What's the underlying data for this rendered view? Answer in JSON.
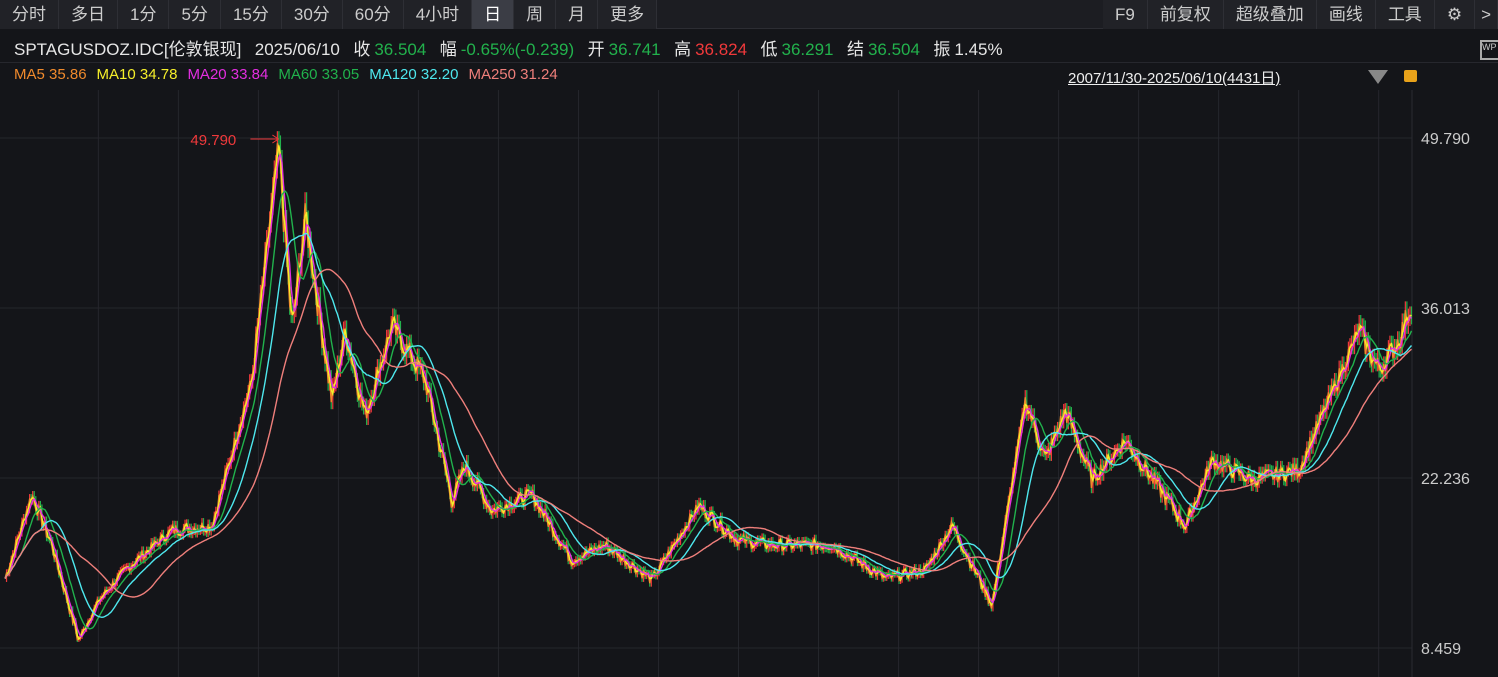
{
  "toolbar": {
    "left": [
      "分时",
      "多日",
      "1分",
      "5分",
      "15分",
      "30分",
      "60分",
      "4小时",
      "日",
      "周",
      "月",
      "更多"
    ],
    "active": "日",
    "right": [
      "F9",
      "前复权",
      "超级叠加",
      "画线",
      "工具"
    ],
    "settings_icon": "gear-icon",
    "more_icon": ">"
  },
  "info": {
    "symbol": "SPTAGUSDOZ.IDC[伦敦银现]",
    "date": "2025/06/10",
    "close_label": "收",
    "close": "36.504",
    "change_label": "幅",
    "change": "-0.65%(-0.239)",
    "open_label": "开",
    "open": "36.741",
    "high_label": "高",
    "high": "36.824",
    "low_label": "低",
    "low": "36.291",
    "settle_label": "结",
    "settle": "36.504",
    "amp_label": "振",
    "amp": "1.45%"
  },
  "ma": [
    {
      "label": "MA5 35.86",
      "color": "#f08a2c"
    },
    {
      "label": "MA10 34.78",
      "color": "#f5ef2a"
    },
    {
      "label": "MA20 33.84",
      "color": "#e32ee0"
    },
    {
      "label": "MA60 33.05",
      "color": "#21b24c"
    },
    {
      "label": "MA120 32.20",
      "color": "#4ee8ee"
    },
    {
      "label": "MA250 31.24",
      "color": "#ef7f7b"
    }
  ],
  "range": "2007/11/30-2025/06/10(4431日)",
  "chart_data": {
    "type": "line",
    "title": "",
    "y_ticks": [
      "49.790",
      "36.013",
      "22.236",
      "8.459"
    ],
    "ylim": [
      8.459,
      49.79
    ],
    "peak_label": "49.790",
    "x_range": [
      "2007/11/30",
      "2025/06/10"
    ],
    "colors": {
      "up": "#f0393b",
      "down": "#22b14c",
      "grid": "#25262c"
    },
    "series": [
      {
        "points": [
          [
            "2007-11",
            14.1
          ],
          [
            "2008-03",
            20.9
          ],
          [
            "2008-06",
            16.8
          ],
          [
            "2008-10",
            9.1
          ],
          [
            "2009-01",
            12.3
          ],
          [
            "2009-05",
            14.8
          ],
          [
            "2009-12",
            18.0
          ],
          [
            "2010-06",
            18.4
          ],
          [
            "2010-12",
            30.2
          ],
          [
            "2011-04",
            49.2
          ],
          [
            "2011-06",
            34.2
          ],
          [
            "2011-08",
            43.5
          ],
          [
            "2011-12",
            28.6
          ],
          [
            "2012-02",
            34.2
          ],
          [
            "2012-05",
            27.3
          ],
          [
            "2012-09",
            34.6
          ],
          [
            "2013-02",
            30.2
          ],
          [
            "2013-06",
            20.4
          ],
          [
            "2013-08",
            23.3
          ],
          [
            "2013-12",
            19.6
          ],
          [
            "2014-06",
            20.9
          ],
          [
            "2014-12",
            15.6
          ],
          [
            "2015-05",
            16.8
          ],
          [
            "2015-12",
            14.0
          ],
          [
            "2016-07",
            20.0
          ],
          [
            "2017-01",
            17.2
          ],
          [
            "2017-06",
            16.8
          ],
          [
            "2018-03",
            16.8
          ],
          [
            "2018-11",
            14.1
          ],
          [
            "2019-05",
            14.8
          ],
          [
            "2019-09",
            18.4
          ],
          [
            "2020-03",
            12.0
          ],
          [
            "2020-08",
            28.6
          ],
          [
            "2020-11",
            23.7
          ],
          [
            "2021-02",
            27.7
          ],
          [
            "2021-06",
            22.1
          ],
          [
            "2021-11",
            25.3
          ],
          [
            "2022-08",
            18.4
          ],
          [
            "2022-12",
            23.7
          ],
          [
            "2023-06",
            22.1
          ],
          [
            "2024-01",
            22.9
          ],
          [
            "2024-10",
            34.2
          ],
          [
            "2025-01",
            31.0
          ],
          [
            "2025-04",
            33.4
          ],
          [
            "2025-06",
            36.5
          ]
        ]
      }
    ]
  }
}
